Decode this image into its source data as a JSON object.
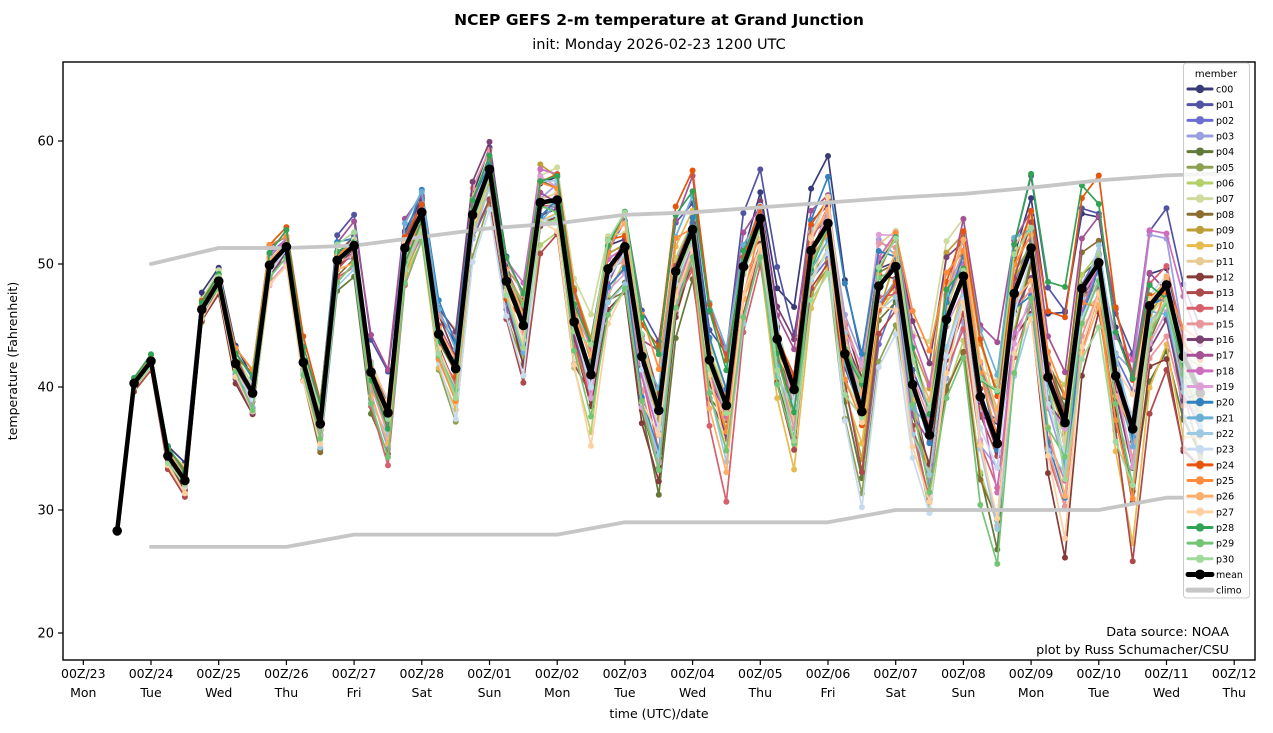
{
  "title": "NCEP GEFS 2-m temperature at Grand Junction",
  "subtitle": "init: Monday 2026-02-23 1200 UTC",
  "annotation": {
    "line1": "Data source: NOAA",
    "line2": "plot by Russ Schumacher/CSU"
  },
  "legend": {
    "title": "member",
    "mean_label": "mean",
    "climo_label": "climo"
  },
  "colors": {
    "mean": "#000000",
    "climo": "#c6c6c6",
    "axis": "#000000",
    "legend_border": "#cccccc"
  },
  "members": [
    {
      "name": "c00",
      "color": "#393b79"
    },
    {
      "name": "p01",
      "color": "#5254a3"
    },
    {
      "name": "p02",
      "color": "#6b6ecf"
    },
    {
      "name": "p03",
      "color": "#9c9ede"
    },
    {
      "name": "p04",
      "color": "#637939"
    },
    {
      "name": "p05",
      "color": "#8ca252"
    },
    {
      "name": "p06",
      "color": "#b5cf6b"
    },
    {
      "name": "p07",
      "color": "#cedb9c"
    },
    {
      "name": "p08",
      "color": "#8c6d31"
    },
    {
      "name": "p09",
      "color": "#bd9e39"
    },
    {
      "name": "p10",
      "color": "#e7ba52"
    },
    {
      "name": "p11",
      "color": "#e7cb94"
    },
    {
      "name": "p12",
      "color": "#843c39"
    },
    {
      "name": "p13",
      "color": "#ad494a"
    },
    {
      "name": "p14",
      "color": "#d6616b"
    },
    {
      "name": "p15",
      "color": "#e7969c"
    },
    {
      "name": "p16",
      "color": "#7b4173"
    },
    {
      "name": "p17",
      "color": "#a55194"
    },
    {
      "name": "p18",
      "color": "#ce6dbd"
    },
    {
      "name": "p19",
      "color": "#de9ed6"
    },
    {
      "name": "p20",
      "color": "#3182bd"
    },
    {
      "name": "p21",
      "color": "#6baed6"
    },
    {
      "name": "p22",
      "color": "#9ecae1"
    },
    {
      "name": "p23",
      "color": "#c6dbef"
    },
    {
      "name": "p24",
      "color": "#e6550d"
    },
    {
      "name": "p25",
      "color": "#fd8d3c"
    },
    {
      "name": "p26",
      "color": "#fdae6b"
    },
    {
      "name": "p27",
      "color": "#fdd0a2"
    },
    {
      "name": "p28",
      "color": "#31a354"
    },
    {
      "name": "p29",
      "color": "#74c476"
    },
    {
      "name": "p30",
      "color": "#a1d99b"
    }
  ],
  "axes": {
    "xlabel": "time (UTC)/date",
    "ylabel": "temperature (Fahrenheit)",
    "yticks": [
      20,
      30,
      40,
      50,
      60
    ],
    "ylim": [
      17.8,
      66.4
    ],
    "xlim_days": [
      -0.3,
      17.26
    ],
    "xticks": [
      {
        "day": 0,
        "l1": "00Z/23",
        "l2": "Mon"
      },
      {
        "day": 1,
        "l1": "00Z/24",
        "l2": "Tue"
      },
      {
        "day": 2,
        "l1": "00Z/25",
        "l2": "Wed"
      },
      {
        "day": 3,
        "l1": "00Z/26",
        "l2": "Thu"
      },
      {
        "day": 4,
        "l1": "00Z/27",
        "l2": "Fri"
      },
      {
        "day": 5,
        "l1": "00Z/28",
        "l2": "Sat"
      },
      {
        "day": 6,
        "l1": "00Z/01",
        "l2": "Sun"
      },
      {
        "day": 7,
        "l1": "00Z/02",
        "l2": "Mon"
      },
      {
        "day": 8,
        "l1": "00Z/03",
        "l2": "Tue"
      },
      {
        "day": 9,
        "l1": "00Z/04",
        "l2": "Wed"
      },
      {
        "day": 10,
        "l1": "00Z/05",
        "l2": "Thu"
      },
      {
        "day": 11,
        "l1": "00Z/06",
        "l2": "Fri"
      },
      {
        "day": 12,
        "l1": "00Z/07",
        "l2": "Sat"
      },
      {
        "day": 13,
        "l1": "00Z/08",
        "l2": "Sun"
      },
      {
        "day": 14,
        "l1": "00Z/09",
        "l2": "Mon"
      },
      {
        "day": 15,
        "l1": "00Z/10",
        "l2": "Tue"
      },
      {
        "day": 16,
        "l1": "00Z/11",
        "l2": "Wed"
      },
      {
        "day": 17,
        "l1": "00Z/12",
        "l2": "Thu"
      }
    ]
  },
  "chart_data": {
    "type": "line",
    "title": "NCEP GEFS 2-m temperature at Grand Junction",
    "xlabel": "time (UTC)/date",
    "ylabel": "temperature (Fahrenheit)",
    "x_unit": "days since 00Z 2026-02-23",
    "x_start_day": 0.5,
    "x_step_days": 0.25,
    "grid": false,
    "legend_position": "upper right",
    "mean": [
      28.3,
      40.3,
      42.1,
      34.4,
      32.4,
      46.3,
      48.6,
      41.9,
      39.5,
      49.9,
      51.4,
      42.0,
      37.0,
      50.3,
      51.5,
      41.2,
      37.9,
      51.3,
      54.2,
      44.3,
      41.5,
      54.0,
      57.7,
      48.6,
      45.0,
      55.0,
      55.2,
      45.3,
      41.0,
      49.6,
      51.4,
      42.5,
      38.1,
      49.4,
      52.8,
      42.2,
      38.5,
      49.8,
      53.7,
      43.9,
      39.8,
      51.1,
      53.3,
      42.7,
      38.0,
      48.2,
      49.8,
      40.2,
      36.1,
      45.5,
      49.0,
      39.2,
      35.4,
      47.6,
      51.3,
      40.8,
      37.1,
      48.0,
      50.1,
      40.9,
      36.6,
      46.6,
      48.3,
      42.5,
      39.5
    ],
    "climo_days": [
      1,
      2,
      3,
      4,
      5,
      6,
      7,
      8,
      9,
      10,
      11,
      12,
      13,
      14,
      15,
      16,
      17
    ],
    "climo_upper": [
      50.0,
      51.3,
      51.3,
      51.5,
      52.2,
      52.9,
      53.3,
      54.0,
      54.2,
      54.6,
      55.0,
      55.4,
      55.7,
      56.2,
      56.8,
      57.2,
      57.4
    ],
    "climo_lower": [
      27.0,
      27.0,
      27.0,
      28.0,
      28.0,
      28.0,
      28.0,
      29.0,
      29.0,
      29.0,
      29.0,
      30.0,
      30.0,
      30.0,
      30.0,
      31.0,
      31.0
    ],
    "member_spread_envelope": {
      "t": [
        0.5,
        3,
        6,
        9,
        12,
        16.5
      ],
      "amp_F": [
        0.4,
        2.0,
        3.5,
        5.0,
        6.5,
        8.0
      ]
    }
  }
}
